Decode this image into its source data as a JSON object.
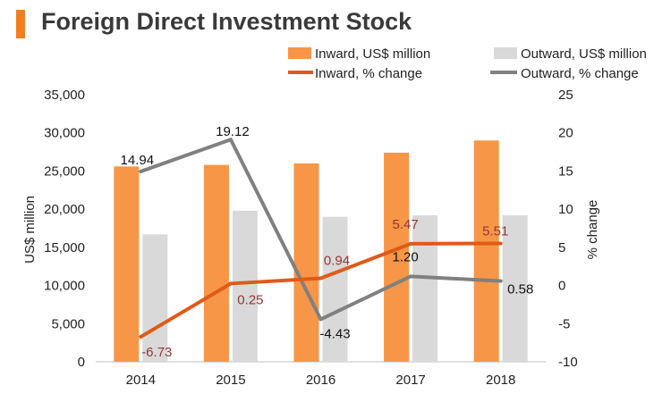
{
  "title": "Foreign Direct Investment Stock",
  "colors": {
    "accent": "#f07f22",
    "inward_bar": "#f79646",
    "outward_bar": "#d9d9d9",
    "inward_line": "#e05a16",
    "outward_line": "#808080",
    "label_dark_red": "#943634"
  },
  "chart_data": {
    "type": "bar",
    "title": "Foreign Direct Investment Stock",
    "categories": [
      "2014",
      "2015",
      "2016",
      "2017",
      "2018"
    ],
    "xlabel": "",
    "ylabel": "US$ million",
    "y2label": "% change",
    "ylim": [
      0,
      35000
    ],
    "y2lim": [
      -10,
      25
    ],
    "y_ticks": [
      "0",
      "5,000",
      "10,000",
      "15,000",
      "20,000",
      "25,000",
      "30,000",
      "35,000"
    ],
    "y2_ticks": [
      "-10",
      "-5",
      "0",
      "5",
      "10",
      "15",
      "20",
      "25"
    ],
    "grid": false,
    "legend_position": "top-right",
    "series": [
      {
        "name": "Inward, US$ million",
        "kind": "bar",
        "axis": "left",
        "values": [
          25600,
          25800,
          26000,
          27400,
          29000
        ]
      },
      {
        "name": "Outward, US$ million",
        "kind": "bar",
        "axis": "left",
        "values": [
          16700,
          19800,
          19000,
          19200,
          19200
        ]
      },
      {
        "name": "Inward, % change",
        "kind": "line",
        "axis": "right",
        "values": [
          -6.73,
          0.25,
          0.94,
          5.47,
          5.51
        ],
        "labels": [
          "-6.73",
          "0.25",
          "0.94",
          "5.47",
          "5.51"
        ]
      },
      {
        "name": "Outward, % change",
        "kind": "line",
        "axis": "right",
        "values": [
          14.94,
          19.12,
          -4.43,
          1.2,
          0.58
        ],
        "labels": [
          "14.94",
          "19.12",
          "-4.43",
          "1.20",
          "0.58"
        ]
      }
    ]
  }
}
